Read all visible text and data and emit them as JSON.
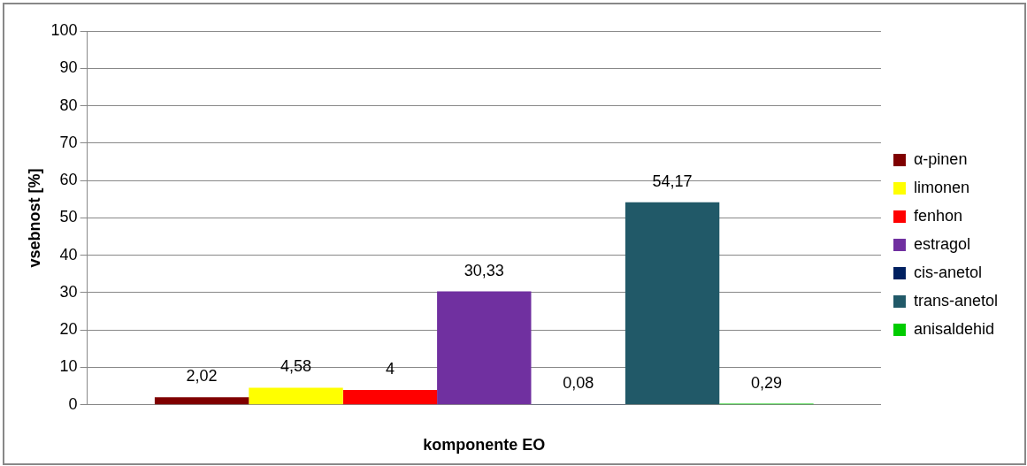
{
  "chart_data": {
    "type": "bar",
    "xlabel": "komponente EO",
    "ylabel": "vsebnost [%]",
    "categories": [
      null
    ],
    "series": [
      {
        "name": "α-pinen",
        "color": "#7f0000",
        "values": [
          2.02
        ],
        "value_labels": [
          "2,02"
        ]
      },
      {
        "name": "limonen",
        "color": "#ffff00",
        "values": [
          4.58
        ],
        "value_labels": [
          "4,58"
        ]
      },
      {
        "name": "fenhon",
        "color": "#ff0000",
        "values": [
          4
        ],
        "value_labels": [
          "4"
        ]
      },
      {
        "name": "estragol",
        "color": "#7030a0",
        "values": [
          30.33
        ],
        "value_labels": [
          "30,33"
        ]
      },
      {
        "name": "cis-anetol",
        "color": "#002060",
        "values": [
          0.08
        ],
        "value_labels": [
          "0,08"
        ]
      },
      {
        "name": "trans-anetol",
        "color": "#215968",
        "values": [
          54.17
        ],
        "value_labels": [
          "54,17"
        ]
      },
      {
        "name": "anisaldehid",
        "color": "#00cc00",
        "values": [
          0.29
        ],
        "value_labels": [
          "0,29"
        ]
      }
    ],
    "ylim": [
      0,
      100
    ],
    "yticks": [
      0,
      10,
      20,
      30,
      40,
      50,
      60,
      70,
      80,
      90,
      100
    ],
    "grid": "y",
    "legend": "right"
  }
}
